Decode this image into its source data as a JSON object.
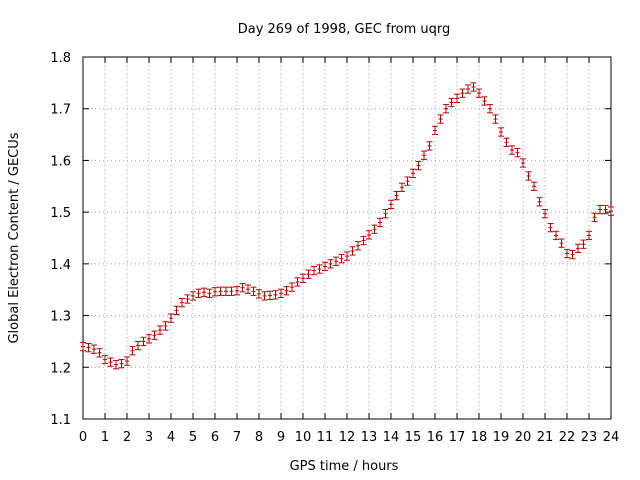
{
  "chart_data": {
    "type": "scatter",
    "title": "Day 269 of 1998, GEC from uqrg",
    "xlabel": "GPS time / hours",
    "ylabel": "Global Electron Content / GECUs",
    "xlim": [
      0,
      24
    ],
    "ylim": [
      1.1,
      1.8
    ],
    "xticks": [
      "0",
      "1",
      "2",
      "3",
      "4",
      "5",
      "6",
      "7",
      "8",
      "9",
      "10",
      "11",
      "12",
      "13",
      "14",
      "15",
      "16",
      "17",
      "18",
      "19",
      "20",
      "21",
      "22",
      "23",
      "24"
    ],
    "yticks": [
      "1.1",
      "1.2",
      "1.3",
      "1.4",
      "1.5",
      "1.6",
      "1.7",
      "1.8"
    ],
    "grid": true,
    "series_color": "#c00000",
    "error": 0.008,
    "series": [
      {
        "name": "GEC",
        "x": [
          0,
          0.25,
          0.5,
          0.75,
          1,
          1.25,
          1.5,
          1.75,
          2,
          2.25,
          2.5,
          2.75,
          3,
          3.25,
          3.5,
          3.75,
          4,
          4.25,
          4.5,
          4.75,
          5,
          5.25,
          5.5,
          5.75,
          6,
          6.25,
          6.5,
          6.75,
          7,
          7.25,
          7.5,
          7.75,
          8,
          8.25,
          8.5,
          8.75,
          9,
          9.25,
          9.5,
          9.75,
          10,
          10.25,
          10.5,
          10.75,
          11,
          11.25,
          11.5,
          11.75,
          12,
          12.25,
          12.5,
          12.75,
          13,
          13.25,
          13.5,
          13.75,
          14,
          14.25,
          14.5,
          14.75,
          15,
          15.25,
          15.5,
          15.75,
          16,
          16.25,
          16.5,
          16.75,
          17,
          17.25,
          17.5,
          17.75,
          18,
          18.25,
          18.5,
          18.75,
          19,
          19.25,
          19.5,
          19.75,
          20,
          20.25,
          20.5,
          20.75,
          21,
          21.25,
          21.5,
          21.75,
          22,
          22.25,
          22.5,
          22.75,
          23,
          23.25,
          23.5,
          23.75,
          24
        ],
        "y": [
          1.24,
          1.238,
          1.235,
          1.228,
          1.215,
          1.21,
          1.205,
          1.207,
          1.212,
          1.232,
          1.242,
          1.25,
          1.255,
          1.262,
          1.272,
          1.28,
          1.295,
          1.31,
          1.325,
          1.332,
          1.338,
          1.343,
          1.345,
          1.343,
          1.346,
          1.347,
          1.347,
          1.347,
          1.348,
          1.354,
          1.351,
          1.347,
          1.342,
          1.338,
          1.339,
          1.34,
          1.343,
          1.348,
          1.355,
          1.365,
          1.372,
          1.38,
          1.387,
          1.39,
          1.395,
          1.4,
          1.405,
          1.41,
          1.415,
          1.425,
          1.435,
          1.445,
          1.456,
          1.467,
          1.48,
          1.497,
          1.515,
          1.532,
          1.548,
          1.56,
          1.575,
          1.59,
          1.61,
          1.628,
          1.658,
          1.68,
          1.7,
          1.712,
          1.72,
          1.73,
          1.738,
          1.742,
          1.73,
          1.715,
          1.7,
          1.68,
          1.655,
          1.635,
          1.62,
          1.615,
          1.595,
          1.57,
          1.55,
          1.52,
          1.497,
          1.47,
          1.455,
          1.44,
          1.42,
          1.418,
          1.43,
          1.438,
          1.455,
          1.49,
          1.505,
          1.505,
          1.502
        ]
      }
    ]
  }
}
